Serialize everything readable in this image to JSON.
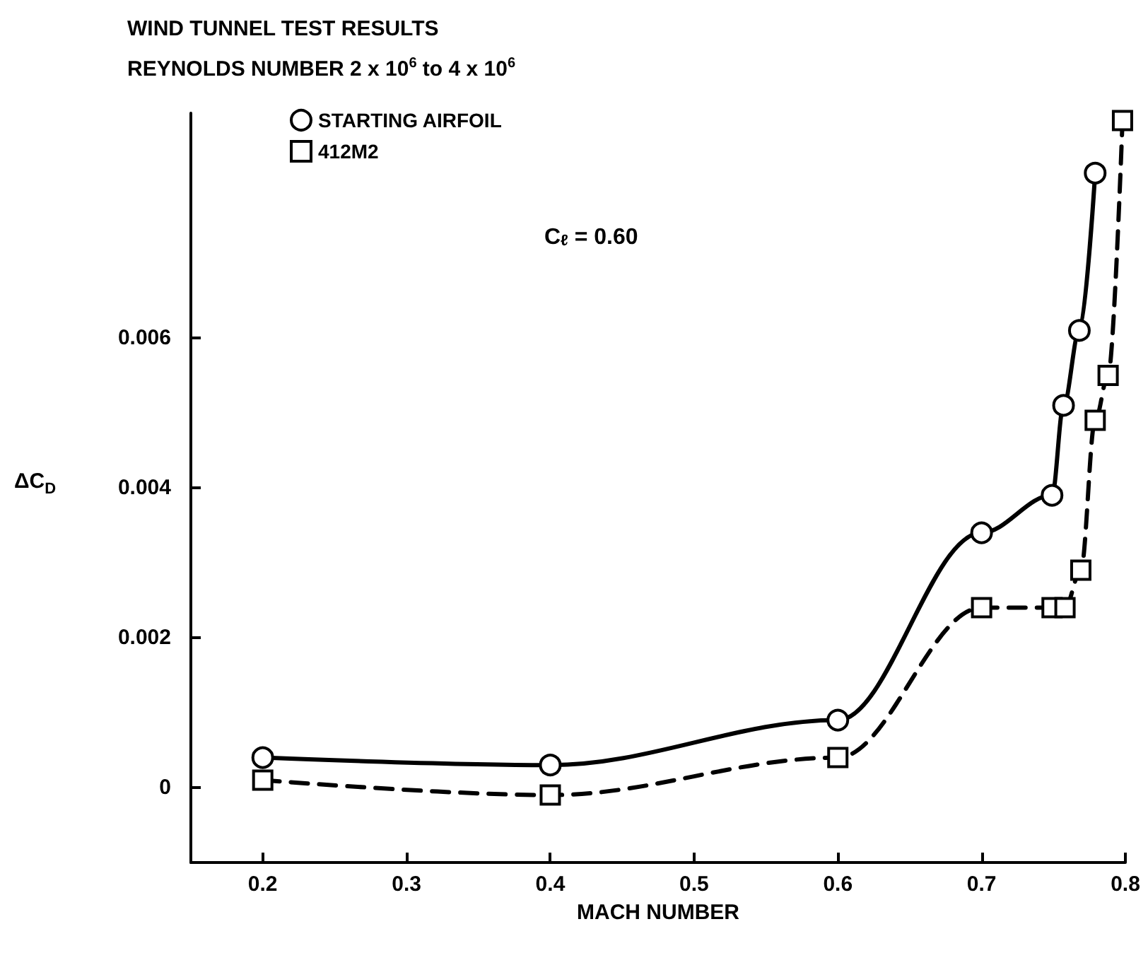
{
  "chart_data": {
    "type": "line",
    "title": "WIND TUNNEL TEST RESULTS",
    "subtitle": "REYNOLDS NUMBER 2 x 10$^{6}$ to 4 x 10$^{6}$",
    "xlabel": "MACH NUMBER",
    "ylabel": "ΔC$_{D}$",
    "annotations": [
      "C$_{ℓ}$ = 0.60"
    ],
    "series": [
      {
        "name": "STARTING AIRFOIL",
        "color": "#000000",
        "marker": "circle",
        "line_style": "solid",
        "x": [
          0.2,
          0.4,
          0.6,
          0.7,
          0.749,
          0.757,
          0.768,
          0.779
        ],
        "values": [
          0.0004,
          0.0003,
          0.0009,
          0.0034,
          0.0039,
          0.0051,
          0.0061,
          0.0082
        ]
      },
      {
        "name": "412M2",
        "color": "#000000",
        "marker": "square",
        "line_style": "dashed",
        "x": [
          0.2,
          0.4,
          0.6,
          0.7,
          0.749,
          0.758,
          0.769,
          0.779,
          0.788,
          0.798
        ],
        "values": [
          0.0001,
          -0.0001,
          0.0004,
          0.0024,
          0.0024,
          0.0024,
          0.0029,
          0.0049,
          0.0055,
          0.0089
        ]
      }
    ],
    "xlim": [
      0.15,
      0.8
    ],
    "xticks": [
      0.2,
      0.3,
      0.4,
      0.5,
      0.6,
      0.7,
      0.8
    ],
    "ylim": [
      -0.001,
      0.009
    ],
    "yticks": [
      0,
      0.002,
      0.004,
      0.006
    ],
    "grid": false,
    "legend": "top left"
  }
}
